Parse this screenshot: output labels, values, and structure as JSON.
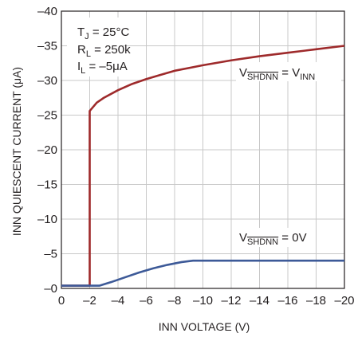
{
  "chart_data": {
    "type": "line",
    "xlabel": "INN VOLTAGE (V)",
    "ylabel": "INN QUIESCENT CURRENT (μA)",
    "xlim": [
      0,
      -20
    ],
    "ylim": [
      0,
      -40
    ],
    "x_ticks": [
      0,
      -2,
      -4,
      -6,
      -8,
      -10,
      -12,
      -14,
      -16,
      -18,
      -20
    ],
    "x_tick_labels": [
      "0",
      "–2",
      "–4",
      "–6",
      "–8",
      "–10",
      "–12",
      "–14",
      "–16",
      "–18",
      "–20"
    ],
    "y_ticks": [
      0,
      -5,
      -10,
      -15,
      -20,
      -25,
      -30,
      -35,
      -40
    ],
    "y_tick_labels": [
      "–0",
      "–5",
      "–10",
      "–15",
      "–20",
      "–25",
      "–30",
      "–35",
      "–40"
    ],
    "grid": true,
    "conditions": {
      "tj": {
        "main": "T",
        "sub": "J",
        "rest": " = 25°C"
      },
      "rl": {
        "main": "R",
        "sub": "L",
        "rest": " = 250k"
      },
      "il": {
        "main": "I",
        "sub": "L",
        "rest": " = –5μA"
      }
    },
    "series": [
      {
        "label": {
          "v": "V",
          "sub": "SHDNN",
          "rest": " = V",
          "sub2": "INN"
        },
        "color": "#9e2a2b",
        "x": [
          0,
          -1.0,
          -1.9,
          -2.0,
          -2.0,
          -2.5,
          -3,
          -4,
          -5,
          -6,
          -7,
          -8,
          -9,
          -10,
          -12,
          -14,
          -16,
          -18,
          -20
        ],
        "y": [
          -0.4,
          -0.4,
          -0.4,
          -0.4,
          -25.6,
          -26.8,
          -27.5,
          -28.6,
          -29.5,
          -30.2,
          -30.8,
          -31.4,
          -31.8,
          -32.2,
          -32.9,
          -33.5,
          -34.0,
          -34.5,
          -35.0
        ]
      },
      {
        "label": {
          "v": "V",
          "sub": "SHDNN",
          "rest": " = 0V",
          "sub2": ""
        },
        "color": "#3d5a98",
        "x": [
          0,
          -1,
          -2,
          -2.7,
          -3.5,
          -4.5,
          -5.5,
          -6.5,
          -7.5,
          -8.5,
          -9.3,
          -10,
          -12,
          -14,
          -16,
          -18,
          -20
        ],
        "y": [
          -0.4,
          -0.4,
          -0.4,
          -0.4,
          -0.9,
          -1.6,
          -2.3,
          -2.9,
          -3.4,
          -3.8,
          -4.0,
          -4.0,
          -4.0,
          -4.0,
          -4.0,
          -4.0,
          -4.0
        ]
      }
    ]
  }
}
